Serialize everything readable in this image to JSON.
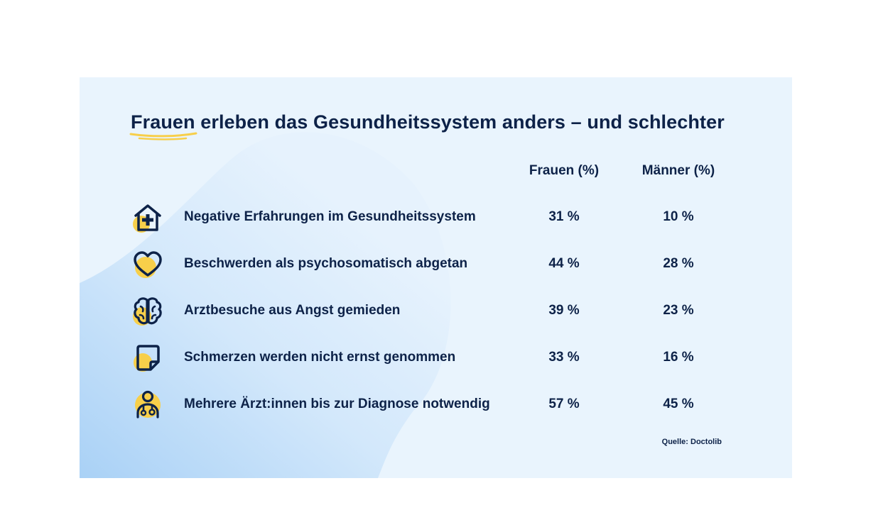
{
  "title": {
    "highlight": "Frauen",
    "rest": " erleben das Gesundheitssystem anders – und schlechter"
  },
  "colors": {
    "text": "#0d2248",
    "accent_yellow": "#f7cf4a",
    "card_bg": "#e9f4fd",
    "blob_blue": "#a9d1f6"
  },
  "chart_data": {
    "type": "table",
    "columns": [
      "Frauen (%)",
      "Männer (%)"
    ],
    "rows": [
      {
        "icon": "hospital-house-icon",
        "label": "Negative Erfahrungen im Gesundheitssystem",
        "frauen": "31 %",
        "maenner": "10 %"
      },
      {
        "icon": "heart-icon",
        "label": "Beschwerden als psychosomatisch abgetan",
        "frauen": "44 %",
        "maenner": "28 %"
      },
      {
        "icon": "brain-icon",
        "label": "Arztbesuche aus Angst gemieden",
        "frauen": "39 %",
        "maenner": "23 %"
      },
      {
        "icon": "note-icon",
        "label": "Schmerzen werden nicht ernst genommen",
        "frauen": "33 %",
        "maenner": "16 %"
      },
      {
        "icon": "doctor-icon",
        "label": "Mehrere Ärzt:innen bis zur Diagnose notwendig",
        "frauen": "57 %",
        "maenner": "45 %"
      }
    ],
    "values_frauen": [
      31,
      44,
      39,
      33,
      57
    ],
    "values_maenner": [
      10,
      28,
      23,
      16,
      45
    ],
    "source": "Quelle: Doctolib"
  }
}
